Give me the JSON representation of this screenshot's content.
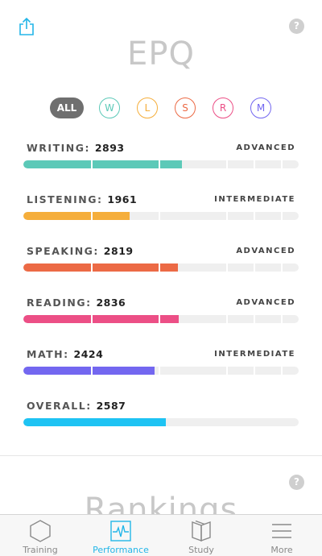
{
  "header": {
    "title": "EPQ",
    "share_icon": "share-icon",
    "help_icon": "help-icon",
    "help_label": "?"
  },
  "filters": [
    {
      "label": "ALL",
      "color": "#6f6f6f",
      "selected": true
    },
    {
      "label": "W",
      "color": "#5cc9b8",
      "selected": false
    },
    {
      "label": "L",
      "color": "#f5ae3b",
      "selected": false
    },
    {
      "label": "S",
      "color": "#ec6a45",
      "selected": false
    },
    {
      "label": "R",
      "color": "#ec4f86",
      "selected": false
    },
    {
      "label": "M",
      "color": "#7367f0",
      "selected": false
    }
  ],
  "skills": [
    {
      "name": "WRITING:",
      "score": "2893",
      "level": "ADVANCED",
      "progress": 0.575,
      "color": "#5cc9b8"
    },
    {
      "name": "LISTENING:",
      "score": "1961",
      "level": "INTERMEDIATE",
      "progress": 0.385,
      "color": "#f5ae3b"
    },
    {
      "name": "SPEAKING:",
      "score": "2819",
      "level": "ADVANCED",
      "progress": 0.561,
      "color": "#ec6a45"
    },
    {
      "name": "READING:",
      "score": "2836",
      "level": "ADVANCED",
      "progress": 0.564,
      "color": "#ec4f86"
    },
    {
      "name": "MATH:",
      "score": "2424",
      "level": "INTERMEDIATE",
      "progress": 0.477,
      "color": "#7367f0"
    },
    {
      "name": "OVERALL:",
      "score": "2587",
      "level": "",
      "progress": 0.518,
      "color": "#1ec3f3"
    }
  ],
  "rankings": {
    "title": "Rankings"
  },
  "tabbar": {
    "active_color": "#23b6e8",
    "items": [
      {
        "label": "Training",
        "icon": "hexagon-icon",
        "active": false
      },
      {
        "label": "Performance",
        "icon": "pulse-chart-icon",
        "active": true
      },
      {
        "label": "Study",
        "icon": "book-icon",
        "active": false
      },
      {
        "label": "More",
        "icon": "menu-icon",
        "active": false
      }
    ]
  }
}
